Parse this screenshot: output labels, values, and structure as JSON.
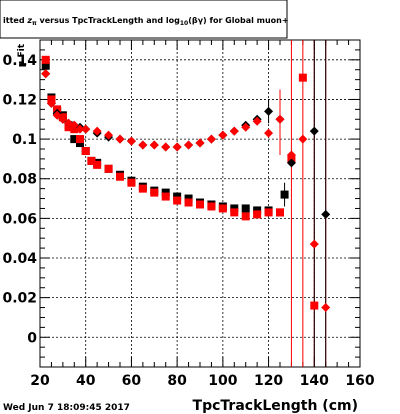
{
  "chart_data": {
    "type": "scatter",
    "title": "itted z_{π} versus TpcTrackLength and log_{10}(βγ) for Global muon+",
    "title_parts": {
      "pre": "itted ",
      "zvar": "z",
      "zsub": "π",
      "mid": " versus TpcTrackLength and log",
      "logsub": "10",
      "post": "(βγ) for Global muon+"
    },
    "xlabel": "TpcTrackLength (cm)",
    "ylabel": "μ Fit",
    "xlim": [
      20,
      160
    ],
    "ylim": [
      -0.015,
      0.15
    ],
    "xticks": [
      20,
      40,
      60,
      80,
      100,
      120,
      140,
      160
    ],
    "yticks": [
      0,
      0.02,
      0.04,
      0.06,
      0.08,
      0.1,
      0.12,
      0.14
    ],
    "grid": true,
    "datestamp": "Wed Jun  7 18:09:45 2017",
    "series": [
      {
        "marker": "square",
        "color": "#000000",
        "points": [
          [
            22.5,
            0.137
          ],
          [
            25,
            0.121
          ],
          [
            27.5,
            0.114
          ],
          [
            30,
            0.112
          ],
          [
            32.5,
            0.107
          ],
          [
            35,
            0.1
          ],
          [
            37.5,
            0.098
          ],
          [
            40,
            0.094
          ],
          [
            42.5,
            0.089
          ],
          [
            45,
            0.088
          ],
          [
            50,
            0.085
          ],
          [
            55,
            0.082
          ],
          [
            60,
            0.079
          ],
          [
            65,
            0.076
          ],
          [
            70,
            0.074
          ],
          [
            75,
            0.073
          ],
          [
            80,
            0.071
          ],
          [
            85,
            0.07
          ],
          [
            90,
            0.068
          ],
          [
            95,
            0.067
          ],
          [
            100,
            0.066
          ],
          [
            105,
            0.065
          ],
          [
            110,
            0.065
          ],
          [
            115,
            0.064
          ],
          [
            120,
            0.064
          ],
          [
            125,
            0.063
          ],
          [
            127,
            0.072
          ]
        ]
      },
      {
        "marker": "square",
        "color": "#ff0000",
        "points": [
          [
            22.5,
            0.14
          ],
          [
            25,
            0.12
          ],
          [
            27.5,
            0.115
          ],
          [
            30,
            0.111
          ],
          [
            32.5,
            0.106
          ],
          [
            35,
            0.105
          ],
          [
            37.5,
            0.1
          ],
          [
            40,
            0.094
          ],
          [
            42.5,
            0.089
          ],
          [
            45,
            0.087
          ],
          [
            50,
            0.085
          ],
          [
            55,
            0.081
          ],
          [
            60,
            0.078
          ],
          [
            65,
            0.075
          ],
          [
            70,
            0.073
          ],
          [
            75,
            0.071
          ],
          [
            80,
            0.069
          ],
          [
            85,
            0.068
          ],
          [
            90,
            0.067
          ],
          [
            95,
            0.066
          ],
          [
            100,
            0.065
          ],
          [
            105,
            0.063
          ],
          [
            110,
            0.061
          ],
          [
            115,
            0.062
          ],
          [
            120,
            0.063
          ],
          [
            125,
            0.063
          ],
          [
            130,
            0.09
          ],
          [
            135,
            0.131
          ],
          [
            140,
            0.016
          ]
        ]
      },
      {
        "marker": "diamond",
        "color": "#000000",
        "points": [
          [
            22.5,
            0.133
          ],
          [
            25,
            0.118
          ],
          [
            27.5,
            0.113
          ],
          [
            30,
            0.11
          ],
          [
            32.5,
            0.108
          ],
          [
            35,
            0.107
          ],
          [
            37.5,
            0.106
          ],
          [
            40,
            0.105
          ],
          [
            45,
            0.103
          ],
          [
            50,
            0.101
          ],
          [
            55,
            0.1
          ],
          [
            60,
            0.099
          ],
          [
            65,
            0.097
          ],
          [
            70,
            0.097
          ],
          [
            75,
            0.096
          ],
          [
            80,
            0.096
          ],
          [
            85,
            0.097
          ],
          [
            90,
            0.098
          ],
          [
            95,
            0.1
          ],
          [
            100,
            0.102
          ],
          [
            105,
            0.104
          ],
          [
            110,
            0.107
          ],
          [
            115,
            0.11
          ],
          [
            120,
            0.114
          ],
          [
            125,
            0.11
          ],
          [
            130,
            0.088
          ],
          [
            140,
            0.104
          ],
          [
            145,
            0.062
          ]
        ]
      },
      {
        "marker": "diamond",
        "color": "#ff0000",
        "points": [
          [
            22.5,
            0.133
          ],
          [
            25,
            0.118
          ],
          [
            27.5,
            0.112
          ],
          [
            30,
            0.11
          ],
          [
            32.5,
            0.108
          ],
          [
            35,
            0.107
          ],
          [
            37.5,
            0.105
          ],
          [
            40,
            0.105
          ],
          [
            45,
            0.104
          ],
          [
            50,
            0.102
          ],
          [
            55,
            0.1
          ],
          [
            60,
            0.099
          ],
          [
            65,
            0.097
          ],
          [
            70,
            0.097
          ],
          [
            75,
            0.096
          ],
          [
            80,
            0.096
          ],
          [
            85,
            0.097
          ],
          [
            90,
            0.098
          ],
          [
            95,
            0.1
          ],
          [
            100,
            0.102
          ],
          [
            105,
            0.104
          ],
          [
            110,
            0.106
          ],
          [
            115,
            0.109
          ],
          [
            120,
            0.103
          ],
          [
            125,
            0.11
          ],
          [
            130,
            0.092
          ],
          [
            135,
            0.1
          ],
          [
            140,
            0.047
          ],
          [
            145,
            0.015
          ]
        ]
      }
    ],
    "error_bars": [
      {
        "x": 130,
        "y": 0.09,
        "color": "#ff0000",
        "lo": -0.015,
        "hi": 0.15
      },
      {
        "x": 135,
        "y": 0.131,
        "color": "#ff0000",
        "lo": -0.015,
        "hi": 0.15
      },
      {
        "x": 140,
        "y": 0.047,
        "color": "#ff0000",
        "lo": -0.015,
        "hi": 0.15
      },
      {
        "x": 145,
        "y": 0.015,
        "color": "#ff0000",
        "lo": -0.015,
        "hi": 0.15
      },
      {
        "x": 140,
        "y": 0.104,
        "color": "#000000",
        "lo": -0.015,
        "hi": 0.15
      },
      {
        "x": 145,
        "y": 0.062,
        "color": "#000000",
        "lo": -0.015,
        "hi": 0.15
      },
      {
        "x": 125,
        "y": 0.11,
        "color": "#ff0000",
        "lo": 0.092,
        "hi": 0.125
      },
      {
        "x": 120,
        "y": 0.114,
        "color": "#000000",
        "lo": 0.108,
        "hi": 0.12
      },
      {
        "x": 127,
        "y": 0.072,
        "color": "#000000",
        "lo": 0.066,
        "hi": 0.078
      }
    ]
  }
}
